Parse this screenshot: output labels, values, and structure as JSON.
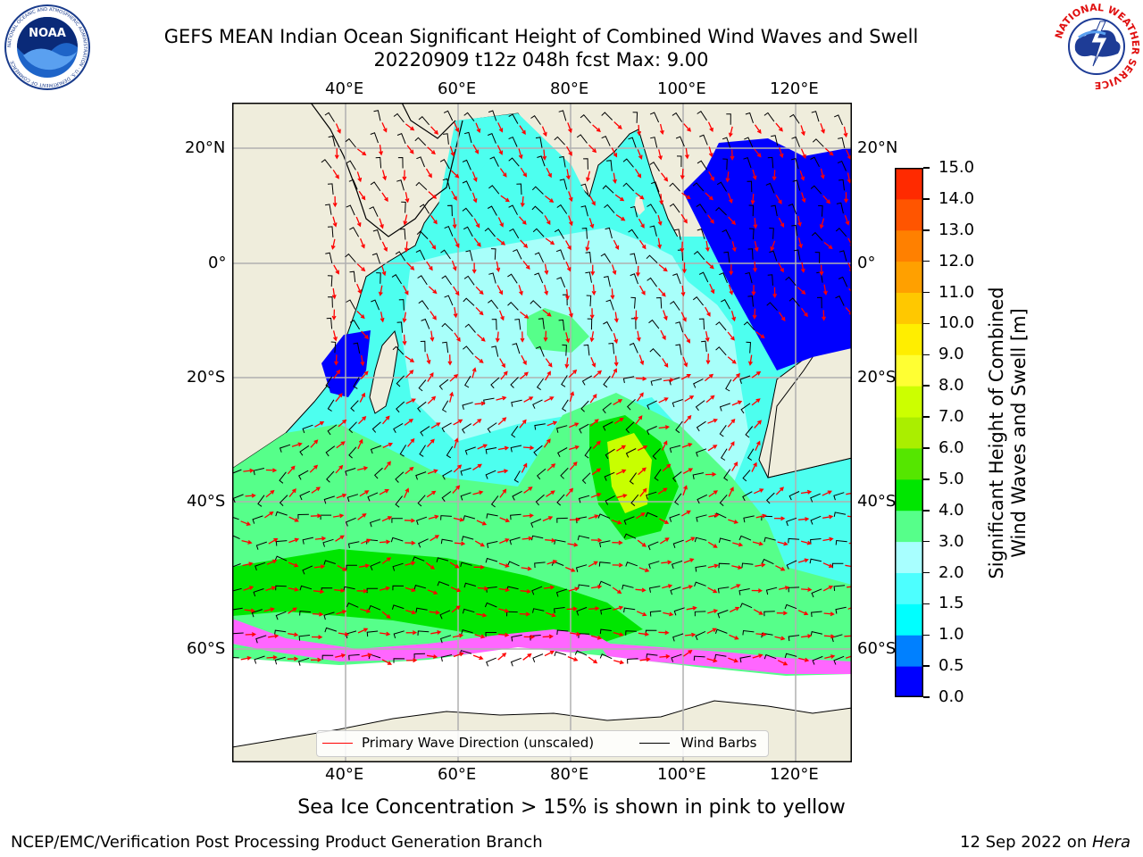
{
  "header": {
    "title_line1": "GEFS MEAN Indian Ocean Significant Height of Combined Wind Waves and Swell",
    "title_line2": "20220909 t12z 048h fcst   Max: 9.00"
  },
  "logos": {
    "left_name": "noaa-logo",
    "left_ring_text": "NATIONAL OCEANIC AND ATMOSPHERIC ADMINISTRATION · U.S. DEPARTMENT OF COMMERCE",
    "left_center_text": "NOAA",
    "right_name": "nws-logo",
    "right_ring_text": "NATIONAL WEATHER SERVICE"
  },
  "map": {
    "lon_ticks": [
      "40°E",
      "60°E",
      "80°E",
      "100°E",
      "120°E"
    ],
    "lat_ticks_left": [
      "20°N",
      "0°",
      "20°S",
      "40°S",
      "60°S"
    ],
    "lat_ticks_right": [
      "20°N",
      "0°",
      "20°S",
      "40°S",
      "60°S"
    ],
    "colors": {
      "land": "#efeddc",
      "ocean_calm": "#a8fffa",
      "ocean_mid": "#4dffef",
      "ocean_rough": "#56ff8a",
      "ocean_high": "#00e600",
      "ocean_peak": "#c8ff00",
      "shallow": "#0000ff",
      "sea_ice": "#ff66ff",
      "wave_arrow": "#ff0000",
      "wind_barb": "#000000"
    }
  },
  "legend": {
    "wave_label": "Primary Wave Direction (unscaled)",
    "wind_label": "Wind Barbs"
  },
  "colorbar": {
    "label_line1": "Significant Height of Combined",
    "label_line2": "Wind Waves and Swell [m]",
    "ticks": [
      "0.0",
      "0.5",
      "1.0",
      "1.5",
      "2.0",
      "3.0",
      "4.0",
      "5.0",
      "6.0",
      "7.0",
      "8.0",
      "9.0",
      "10.0",
      "11.0",
      "12.0",
      "13.0",
      "14.0",
      "15.0"
    ],
    "colors": [
      "#0000ff",
      "#0080ff",
      "#00ffff",
      "#4dffff",
      "#a8ffff",
      "#56ff8a",
      "#00e600",
      "#55e600",
      "#aaee00",
      "#ccff00",
      "#ffff33",
      "#ffee00",
      "#ffc800",
      "#ffa000",
      "#ff8000",
      "#ff5500",
      "#ff2a00"
    ]
  },
  "footer": {
    "subtitle": "Sea Ice Concentration > 15% is shown in pink to yellow",
    "org": "NCEP/EMC/Verification Post Processing Product Generation Branch",
    "date": "12 Sep 2022 on ",
    "host": "Hera"
  }
}
